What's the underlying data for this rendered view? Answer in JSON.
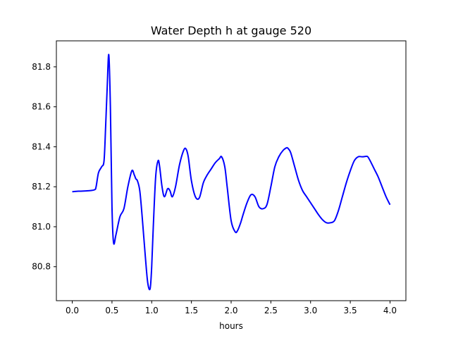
{
  "chart_data": {
    "type": "line",
    "title": "Water Depth h at gauge 520",
    "xlabel": "hours",
    "ylabel": "",
    "xlim": [
      -0.2,
      4.2
    ],
    "ylim": [
      80.63,
      81.93
    ],
    "xticks": [
      0.0,
      0.5,
      1.0,
      1.5,
      2.0,
      2.5,
      3.0,
      3.5,
      4.0
    ],
    "xtick_labels": [
      "0.0",
      "0.5",
      "1.0",
      "1.5",
      "2.0",
      "2.5",
      "3.0",
      "3.5",
      "4.0"
    ],
    "yticks": [
      80.8,
      81.0,
      81.2,
      81.4,
      81.6,
      81.8
    ],
    "ytick_labels": [
      "80.8",
      "81.0",
      "81.2",
      "81.4",
      "81.6",
      "81.8"
    ],
    "grid": false,
    "legend": "none",
    "series": [
      {
        "color": "#0000ff",
        "x": [
          0.0,
          0.05,
          0.1,
          0.2,
          0.28,
          0.3,
          0.33,
          0.37,
          0.4,
          0.42,
          0.44,
          0.46,
          0.48,
          0.5,
          0.52,
          0.55,
          0.6,
          0.65,
          0.7,
          0.75,
          0.78,
          0.8,
          0.82,
          0.85,
          0.88,
          0.92,
          0.95,
          0.98,
          1.0,
          1.02,
          1.05,
          1.08,
          1.1,
          1.13,
          1.16,
          1.2,
          1.23,
          1.26,
          1.3,
          1.35,
          1.4,
          1.43,
          1.46,
          1.5,
          1.55,
          1.6,
          1.65,
          1.7,
          1.75,
          1.8,
          1.85,
          1.88,
          1.92,
          1.95,
          2.0,
          2.05,
          2.08,
          2.12,
          2.15,
          2.2,
          2.25,
          2.3,
          2.35,
          2.4,
          2.45,
          2.5,
          2.55,
          2.6,
          2.65,
          2.7,
          2.72,
          2.75,
          2.8,
          2.85,
          2.9,
          2.95,
          3.0,
          3.05,
          3.1,
          3.15,
          3.2,
          3.25,
          3.3,
          3.35,
          3.4,
          3.45,
          3.5,
          3.55,
          3.6,
          3.65,
          3.7,
          3.72,
          3.75,
          3.8,
          3.85,
          3.9,
          3.95,
          4.0
        ],
        "y": [
          81.175,
          81.177,
          81.178,
          81.18,
          81.185,
          81.2,
          81.27,
          81.3,
          81.33,
          81.5,
          81.7,
          81.86,
          81.6,
          81.1,
          80.92,
          80.96,
          81.05,
          81.09,
          81.2,
          81.28,
          81.26,
          81.24,
          81.23,
          81.18,
          81.05,
          80.85,
          80.72,
          80.69,
          80.8,
          81.0,
          81.25,
          81.33,
          81.3,
          81.2,
          81.15,
          81.19,
          81.18,
          81.15,
          81.2,
          81.31,
          81.38,
          81.39,
          81.35,
          81.23,
          81.15,
          81.145,
          81.22,
          81.26,
          81.29,
          81.32,
          81.34,
          81.35,
          81.3,
          81.2,
          81.03,
          80.975,
          80.98,
          81.02,
          81.06,
          81.12,
          81.16,
          81.15,
          81.1,
          81.09,
          81.11,
          81.2,
          81.3,
          81.35,
          81.38,
          81.395,
          81.39,
          81.37,
          81.3,
          81.23,
          81.18,
          81.15,
          81.12,
          81.09,
          81.06,
          81.035,
          81.02,
          81.02,
          81.03,
          81.08,
          81.15,
          81.22,
          81.28,
          81.33,
          81.35,
          81.35,
          81.352,
          81.35,
          81.33,
          81.29,
          81.25,
          81.2,
          81.15,
          81.11
        ]
      }
    ]
  }
}
